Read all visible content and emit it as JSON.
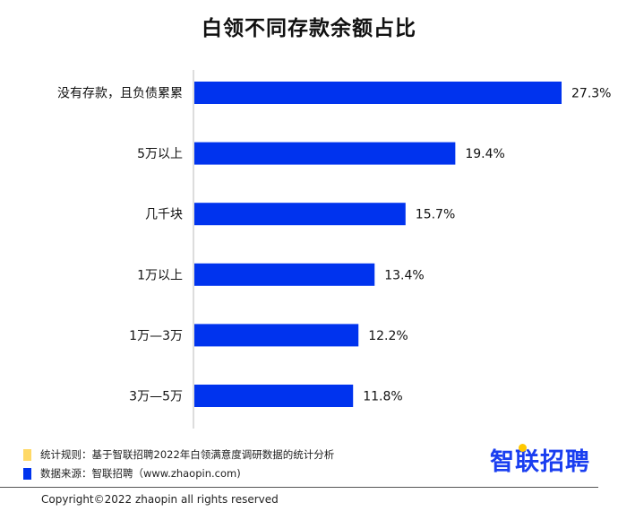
{
  "colors": {
    "bar": "#0033ee",
    "legend_rule": "#ffd966",
    "legend_source": "#0033ee",
    "logo": "#1a3ef0",
    "logo_dot": "#ffc800"
  },
  "chart_data": {
    "type": "bar",
    "orientation": "horizontal",
    "title": "白领不同存款余额占比",
    "categories": [
      "没有存款，且负债累累",
      "5万以上",
      "几千块",
      "1万以上",
      "1万—3万",
      "3万—5万"
    ],
    "values": [
      27.3,
      19.4,
      15.7,
      13.4,
      12.2,
      11.8
    ],
    "value_labels": [
      "27.3%",
      "19.4%",
      "15.7%",
      "13.4%",
      "12.2%",
      "11.8%"
    ],
    "unit": "%",
    "xlim": [
      0,
      27.3
    ],
    "grid": false
  },
  "footer": {
    "rule_text": "统计规则：基于智联招聘2022年白领满意度调研数据的统计分析",
    "source_text": "数据来源：智联招聘（www.zhaopin.com)",
    "logo_text": "智联招聘",
    "copyright": "Copyright©2022 zhaopin all rights reserved"
  },
  "icons": {
    "rule_marker": "square-yellow",
    "source_marker": "square-blue"
  }
}
